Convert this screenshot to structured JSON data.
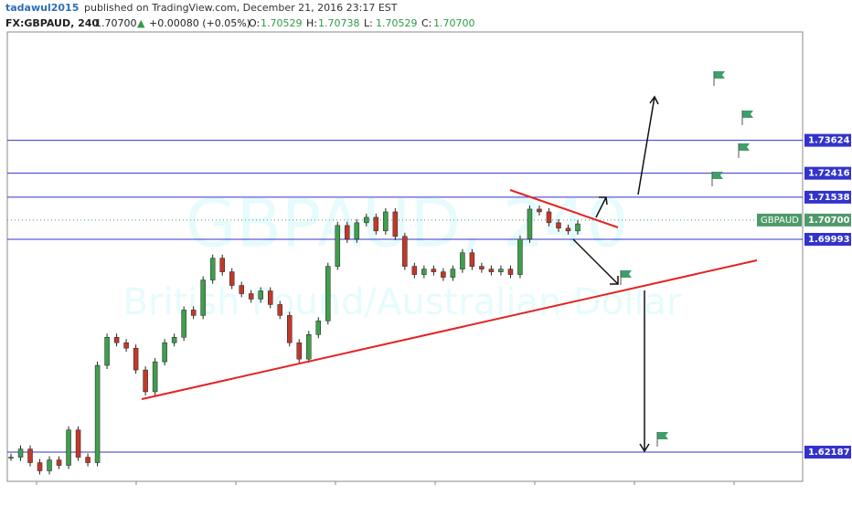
{
  "header": {
    "author": "tadawul2015",
    "published": "published on TradingView.com, December 21, 2016 23:17 EST",
    "symbol": "FX:GBPAUD, 240",
    "last": "1.70700",
    "arrow": "▲",
    "change": "+0.00080 (+0.05%)",
    "ohlc": [
      {
        "label": "O:",
        "value": "1.70529"
      },
      {
        "label": "H:",
        "value": "1.70738"
      },
      {
        "label": "L:",
        "value": "1.70529"
      },
      {
        "label": "C:",
        "value": "1.70700"
      }
    ]
  },
  "chart_data": {
    "type": "candlestick",
    "watermark": "GBPAUD, 240",
    "watermark_subtitle": "British Pound/Australian Dollar",
    "values": [
      1.62,
      1.623,
      1.618,
      1.615,
      1.619,
      1.617,
      1.63,
      1.62,
      1.618,
      1.6537,
      1.664,
      1.662,
      1.66,
      1.652,
      1.644,
      1.655,
      1.662,
      1.664,
      1.674,
      1.672,
      1.685,
      1.693,
      1.688,
      1.683,
      1.68,
      1.678,
      1.681,
      1.676,
      1.672,
      1.662,
      1.656,
      1.665,
      1.67,
      1.69,
      1.705,
      1.7,
      1.706,
      1.708,
      1.703,
      1.71,
      1.701,
      1.69,
      1.687,
      1.689,
      1.688,
      1.686,
      1.689,
      1.695,
      1.69,
      1.689,
      1.688,
      1.689,
      1.687,
      1.7,
      1.711,
      1.71,
      1.706,
      1.704,
      1.703,
      1.7056
    ],
    "up_color": "#3f9e4d",
    "down_color": "#c0392b",
    "ylim": [
      1.61115,
      1.77598
    ],
    "levels": [
      1.73624,
      1.72416,
      1.71538,
      1.69993,
      1.62187
    ],
    "level_color": "#3333cc",
    "current": {
      "name": "GBPAUD",
      "price": {
        "value": 1.707,
        "label": "1.70700"
      },
      "color": "#4f9a6a"
    }
  }
}
